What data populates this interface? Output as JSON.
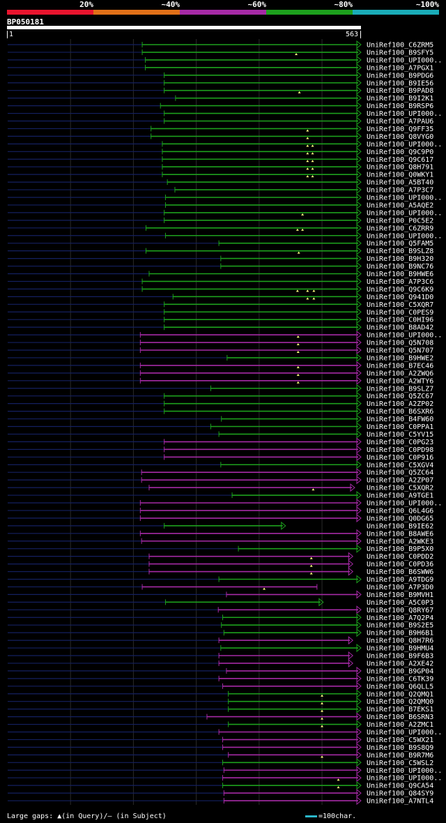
{
  "scale": {
    "labels": [
      "20%",
      "~40%",
      "~60%",
      "~80%",
      "~100%"
    ],
    "colors": [
      "#e8142e",
      "#e07018",
      "#a52aa5",
      "#1da01d",
      "#1aacb8"
    ]
  },
  "query": {
    "name": "BP050181",
    "start": "1",
    "end": "563",
    "length": 563
  },
  "footer": {
    "gaps_text": "Large gaps: ▲(in Query)/– (in Subject)",
    "scale_text": "=100char."
  },
  "chart_data": {
    "type": "alignment-overview",
    "query_length": 563,
    "hits": [
      {
        "name": "UniRef100_C6ZRM5",
        "start": 215,
        "end": 563,
        "cls": "g",
        "arrow": true,
        "gaps": []
      },
      {
        "name": "UniRef100_B9SFY5",
        "start": 215,
        "end": 563,
        "cls": "g",
        "arrow": true,
        "gaps": [
          460
        ]
      },
      {
        "name": "UniRef100_UPI000..",
        "start": 220,
        "end": 563,
        "cls": "g",
        "arrow": true,
        "gaps": []
      },
      {
        "name": "UniRef100_A7PGX1",
        "start": 220,
        "end": 563,
        "cls": "g",
        "arrow": true,
        "gaps": []
      },
      {
        "name": "UniRef100_B9PDG6",
        "start": 250,
        "end": 563,
        "cls": "g",
        "arrow": true,
        "gaps": []
      },
      {
        "name": "UniRef100_B9IE56",
        "start": 250,
        "end": 563,
        "cls": "g",
        "arrow": true,
        "gaps": []
      },
      {
        "name": "UniRef100_B9PAD8",
        "start": 250,
        "end": 563,
        "cls": "g",
        "arrow": true,
        "gaps": [
          465
        ]
      },
      {
        "name": "UniRef100_B9I2K1",
        "start": 268,
        "end": 563,
        "cls": "g",
        "arrow": true,
        "gaps": []
      },
      {
        "name": "UniRef100_B9RSP6",
        "start": 244,
        "end": 563,
        "cls": "g",
        "arrow": true,
        "gaps": []
      },
      {
        "name": "UniRef100_UPI000..",
        "start": 250,
        "end": 563,
        "cls": "g",
        "arrow": true,
        "gaps": []
      },
      {
        "name": "UniRef100_A7PAU6",
        "start": 250,
        "end": 563,
        "cls": "g",
        "arrow": true,
        "gaps": []
      },
      {
        "name": "UniRef100_Q9FF35",
        "start": 229,
        "end": 563,
        "cls": "g",
        "arrow": true,
        "gaps": [
          478
        ]
      },
      {
        "name": "UniRef100_Q8VYG0",
        "start": 229,
        "end": 563,
        "cls": "g",
        "arrow": true,
        "gaps": [
          478
        ]
      },
      {
        "name": "UniRef100_UPI000..",
        "start": 247,
        "end": 563,
        "cls": "g",
        "arrow": true,
        "gaps": [
          478,
          486
        ]
      },
      {
        "name": "UniRef100_Q9C9P0",
        "start": 247,
        "end": 563,
        "cls": "g",
        "arrow": true,
        "gaps": [
          478,
          486
        ]
      },
      {
        "name": "UniRef100_Q9C617",
        "start": 247,
        "end": 563,
        "cls": "g",
        "arrow": true,
        "gaps": [
          478,
          486
        ]
      },
      {
        "name": "UniRef100_Q8H791",
        "start": 247,
        "end": 563,
        "cls": "g",
        "arrow": true,
        "gaps": [
          478,
          486
        ]
      },
      {
        "name": "UniRef100_Q0WKY1",
        "start": 247,
        "end": 563,
        "cls": "g",
        "arrow": true,
        "gaps": [
          478,
          486
        ]
      },
      {
        "name": "UniRef100_A5BT40",
        "start": 255,
        "end": 563,
        "cls": "g",
        "arrow": true,
        "gaps": []
      },
      {
        "name": "UniRef100_A7P3C7",
        "start": 267,
        "end": 563,
        "cls": "g",
        "arrow": true,
        "gaps": []
      },
      {
        "name": "UniRef100_UPI000..",
        "start": 252,
        "end": 563,
        "cls": "g",
        "arrow": true,
        "gaps": []
      },
      {
        "name": "UniRef100_A5AQE2",
        "start": 252,
        "end": 563,
        "cls": "g",
        "arrow": true,
        "gaps": []
      },
      {
        "name": "UniRef100_UPI000..",
        "start": 250,
        "end": 563,
        "cls": "g",
        "arrow": true,
        "gaps": [
          470
        ]
      },
      {
        "name": "UniRef100_P0C5E2",
        "start": 250,
        "end": 563,
        "cls": "g",
        "arrow": true,
        "gaps": []
      },
      {
        "name": "UniRef100_C6ZRR9",
        "start": 221,
        "end": 563,
        "cls": "g",
        "arrow": true,
        "gaps": [
          462,
          470
        ]
      },
      {
        "name": "UniRef100_UPI000..",
        "start": 252,
        "end": 563,
        "cls": "g",
        "arrow": true,
        "gaps": []
      },
      {
        "name": "UniRef100_Q5FAM5",
        "start": 337,
        "end": 563,
        "cls": "g",
        "arrow": true,
        "gaps": []
      },
      {
        "name": "UniRef100_B9SLZ8",
        "start": 221,
        "end": 563,
        "cls": "g",
        "arrow": true,
        "gaps": [
          464
        ]
      },
      {
        "name": "UniRef100_B9H320",
        "start": 340,
        "end": 563,
        "cls": "g",
        "arrow": true,
        "gaps": []
      },
      {
        "name": "UniRef100_B9NC76",
        "start": 340,
        "end": 563,
        "cls": "g",
        "arrow": true,
        "gaps": []
      },
      {
        "name": "UniRef100_B9HWE6",
        "start": 226,
        "end": 563,
        "cls": "g",
        "arrow": true,
        "gaps": []
      },
      {
        "name": "UniRef100_A7P3C6",
        "start": 215,
        "end": 563,
        "cls": "g",
        "arrow": true,
        "gaps": []
      },
      {
        "name": "UniRef100_Q9C6K9",
        "start": 215,
        "end": 563,
        "cls": "g",
        "arrow": true,
        "gaps": [
          462,
          478,
          488
        ]
      },
      {
        "name": "UniRef100_Q941D0",
        "start": 264,
        "end": 563,
        "cls": "g",
        "arrow": true,
        "gaps": [
          478,
          488
        ]
      },
      {
        "name": "UniRef100_C5XQR7",
        "start": 250,
        "end": 563,
        "cls": "g",
        "arrow": true,
        "gaps": []
      },
      {
        "name": "UniRef100_C0PES9",
        "start": 250,
        "end": 563,
        "cls": "g",
        "arrow": true,
        "gaps": []
      },
      {
        "name": "UniRef100_C0HI96",
        "start": 250,
        "end": 563,
        "cls": "g",
        "arrow": true,
        "gaps": []
      },
      {
        "name": "UniRef100_B8AD42",
        "start": 250,
        "end": 563,
        "cls": "g",
        "arrow": true,
        "gaps": []
      },
      {
        "name": "UniRef100_UPI000..",
        "start": 212,
        "end": 563,
        "cls": "m",
        "arrow": true,
        "gaps": [
          463
        ]
      },
      {
        "name": "UniRef100_Q5N708",
        "start": 212,
        "end": 563,
        "cls": "m",
        "arrow": true,
        "gaps": [
          463
        ]
      },
      {
        "name": "UniRef100_Q5N707",
        "start": 212,
        "end": 563,
        "cls": "m",
        "arrow": true,
        "gaps": [
          463
        ]
      },
      {
        "name": "UniRef100_B9HWE2",
        "start": 350,
        "end": 563,
        "cls": "g",
        "arrow": true,
        "gaps": []
      },
      {
        "name": "UniRef100_B7EC46",
        "start": 212,
        "end": 563,
        "cls": "m",
        "arrow": true,
        "gaps": [
          463
        ]
      },
      {
        "name": "UniRef100_A2ZWQ6",
        "start": 212,
        "end": 563,
        "cls": "m",
        "arrow": true,
        "gaps": [
          463
        ]
      },
      {
        "name": "UniRef100_A2WTY6",
        "start": 212,
        "end": 563,
        "cls": "m",
        "arrow": true,
        "gaps": [
          463
        ]
      },
      {
        "name": "UniRef100_B9SLZ7",
        "start": 324,
        "end": 563,
        "cls": "g",
        "arrow": true,
        "gaps": []
      },
      {
        "name": "UniRef100_Q5ZC67",
        "start": 250,
        "end": 563,
        "cls": "g",
        "arrow": true,
        "gaps": []
      },
      {
        "name": "UniRef100_A2ZP02",
        "start": 250,
        "end": 563,
        "cls": "g",
        "arrow": true,
        "gaps": []
      },
      {
        "name": "UniRef100_B6SXR6",
        "start": 250,
        "end": 563,
        "cls": "g",
        "arrow": true,
        "gaps": []
      },
      {
        "name": "UniRef100_B4FW60",
        "start": 341,
        "end": 563,
        "cls": "g",
        "arrow": true,
        "gaps": []
      },
      {
        "name": "UniRef100_C0PPA1",
        "start": 324,
        "end": 563,
        "cls": "g",
        "arrow": true,
        "gaps": []
      },
      {
        "name": "UniRef100_C5YV15",
        "start": 337,
        "end": 563,
        "cls": "g",
        "arrow": true,
        "gaps": []
      },
      {
        "name": "UniRef100_C0PG23",
        "start": 250,
        "end": 563,
        "cls": "m",
        "arrow": true,
        "gaps": []
      },
      {
        "name": "UniRef100_C0PD98",
        "start": 250,
        "end": 563,
        "cls": "m",
        "arrow": true,
        "gaps": []
      },
      {
        "name": "UniRef100_C0P916",
        "start": 250,
        "end": 563,
        "cls": "m",
        "arrow": true,
        "gaps": []
      },
      {
        "name": "UniRef100_C5XGV4",
        "start": 340,
        "end": 563,
        "cls": "g",
        "arrow": true,
        "gaps": []
      },
      {
        "name": "UniRef100_Q5ZC64",
        "start": 214,
        "end": 563,
        "cls": "m",
        "arrow": true,
        "gaps": []
      },
      {
        "name": "UniRef100_A2ZP07",
        "start": 214,
        "end": 563,
        "cls": "m",
        "arrow": true,
        "gaps": []
      },
      {
        "name": "UniRef100_C5XQR2",
        "start": 226,
        "end": 553,
        "cls": "m",
        "arrow": true,
        "gaps": [
          487
        ]
      },
      {
        "name": "UniRef100_A9TGE1",
        "start": 358,
        "end": 563,
        "cls": "g",
        "arrow": true,
        "gaps": []
      },
      {
        "name": "UniRef100_UPI000..",
        "start": 212,
        "end": 563,
        "cls": "m",
        "arrow": true,
        "gaps": []
      },
      {
        "name": "UniRef100_Q6L4G6",
        "start": 212,
        "end": 563,
        "cls": "m",
        "arrow": true,
        "gaps": []
      },
      {
        "name": "UniRef100_Q0DG65",
        "start": 212,
        "end": 563,
        "cls": "m",
        "arrow": true,
        "gaps": []
      },
      {
        "name": "UniRef100_B9IE62",
        "start": 250,
        "end": 443,
        "cls": "g",
        "arrow": true,
        "gaps": []
      },
      {
        "name": "UniRef100_B8AWE6",
        "start": 212,
        "end": 563,
        "cls": "m",
        "arrow": true,
        "gaps": []
      },
      {
        "name": "UniRef100_A2WKE3",
        "start": 214,
        "end": 563,
        "cls": "m",
        "arrow": true,
        "gaps": []
      },
      {
        "name": "UniRef100_B9P5X0",
        "start": 368,
        "end": 563,
        "cls": "g",
        "arrow": true,
        "gaps": []
      },
      {
        "name": "UniRef100_C0PDD2",
        "start": 226,
        "end": 550,
        "cls": "m",
        "arrow": true,
        "gaps": [
          484
        ]
      },
      {
        "name": "UniRef100_C0PD36",
        "start": 226,
        "end": 550,
        "cls": "m",
        "arrow": true,
        "gaps": [
          484
        ]
      },
      {
        "name": "UniRef100_B6SWW6",
        "start": 226,
        "end": 550,
        "cls": "m",
        "arrow": true,
        "gaps": [
          484
        ]
      },
      {
        "name": "UniRef100_A9TDG9",
        "start": 337,
        "end": 563,
        "cls": "g",
        "arrow": true,
        "gaps": []
      },
      {
        "name": "UniRef100_A7P3D0",
        "start": 215,
        "end": 493,
        "cls": "m",
        "arrow": false,
        "gaps": [
          409
        ]
      },
      {
        "name": "UniRef100_B9MVH1",
        "start": 349,
        "end": 563,
        "cls": "m",
        "arrow": true,
        "gaps": []
      },
      {
        "name": "UniRef100_A5C0P3",
        "start": 252,
        "end": 503,
        "cls": "g",
        "arrow": true,
        "gaps": []
      },
      {
        "name": "UniRef100_Q8RY67",
        "start": 336,
        "end": 563,
        "cls": "m",
        "arrow": true,
        "gaps": []
      },
      {
        "name": "UniRef100_A7Q2P4",
        "start": 343,
        "end": 563,
        "cls": "g",
        "arrow": true,
        "gaps": []
      },
      {
        "name": "UniRef100_B9S2E5",
        "start": 341,
        "end": 563,
        "cls": "g",
        "arrow": true,
        "gaps": []
      },
      {
        "name": "UniRef100_B9H6B1",
        "start": 345,
        "end": 563,
        "cls": "g",
        "arrow": true,
        "gaps": []
      },
      {
        "name": "UniRef100_Q8H7R6",
        "start": 337,
        "end": 550,
        "cls": "m",
        "arrow": true,
        "gaps": []
      },
      {
        "name": "UniRef100_B9HMU4",
        "start": 340,
        "end": 563,
        "cls": "g",
        "arrow": true,
        "gaps": []
      },
      {
        "name": "UniRef100_B9F6B3",
        "start": 337,
        "end": 550,
        "cls": "m",
        "arrow": true,
        "gaps": []
      },
      {
        "name": "UniRef100_A2XE42",
        "start": 337,
        "end": 550,
        "cls": "m",
        "arrow": true,
        "gaps": []
      },
      {
        "name": "UniRef100_B9GP04",
        "start": 349,
        "end": 563,
        "cls": "m",
        "arrow": true,
        "gaps": []
      },
      {
        "name": "UniRef100_C6TK39",
        "start": 337,
        "end": 563,
        "cls": "m",
        "arrow": true,
        "gaps": []
      },
      {
        "name": "UniRef100_Q6QLL5",
        "start": 343,
        "end": 563,
        "cls": "m",
        "arrow": true,
        "gaps": []
      },
      {
        "name": "UniRef100_Q2QMQ1",
        "start": 352,
        "end": 563,
        "cls": "g",
        "arrow": true,
        "gaps": [
          501
        ]
      },
      {
        "name": "UniRef100_Q2QMQ0",
        "start": 352,
        "end": 563,
        "cls": "g",
        "arrow": true,
        "gaps": [
          501
        ]
      },
      {
        "name": "UniRef100_B7EKS1",
        "start": 352,
        "end": 563,
        "cls": "g",
        "arrow": true,
        "gaps": [
          501
        ]
      },
      {
        "name": "UniRef100_B6SRN3",
        "start": 318,
        "end": 563,
        "cls": "m",
        "arrow": true,
        "gaps": [
          501
        ]
      },
      {
        "name": "UniRef100_A2ZMC1",
        "start": 352,
        "end": 563,
        "cls": "g",
        "arrow": true,
        "gaps": [
          501
        ]
      },
      {
        "name": "UniRef100_UPI000..",
        "start": 337,
        "end": 563,
        "cls": "m",
        "arrow": true,
        "gaps": []
      },
      {
        "name": "UniRef100_C5WX21",
        "start": 343,
        "end": 563,
        "cls": "m",
        "arrow": true,
        "gaps": []
      },
      {
        "name": "UniRef100_B9S8Q9",
        "start": 343,
        "end": 563,
        "cls": "m",
        "arrow": true,
        "gaps": []
      },
      {
        "name": "UniRef100_B9R7M6",
        "start": 352,
        "end": 563,
        "cls": "m",
        "arrow": true,
        "gaps": [
          501
        ]
      },
      {
        "name": "UniRef100_C5WSL2",
        "start": 343,
        "end": 563,
        "cls": "g",
        "arrow": true,
        "gaps": []
      },
      {
        "name": "UniRef100_UPI000..",
        "start": 345,
        "end": 563,
        "cls": "m",
        "arrow": true,
        "gaps": []
      },
      {
        "name": "UniRef100_UPI000..",
        "start": 343,
        "end": 563,
        "cls": "m",
        "arrow": true,
        "gaps": [
          527
        ]
      },
      {
        "name": "UniRef100_Q9CA54",
        "start": 343,
        "end": 563,
        "cls": "g",
        "arrow": true,
        "gaps": [
          527
        ]
      },
      {
        "name": "UniRef100_Q84SY9",
        "start": 345,
        "end": 563,
        "cls": "m",
        "arrow": true,
        "gaps": []
      },
      {
        "name": "UniRef100_A7NTL4",
        "start": 345,
        "end": 563,
        "cls": "m",
        "arrow": true,
        "gaps": []
      }
    ]
  }
}
